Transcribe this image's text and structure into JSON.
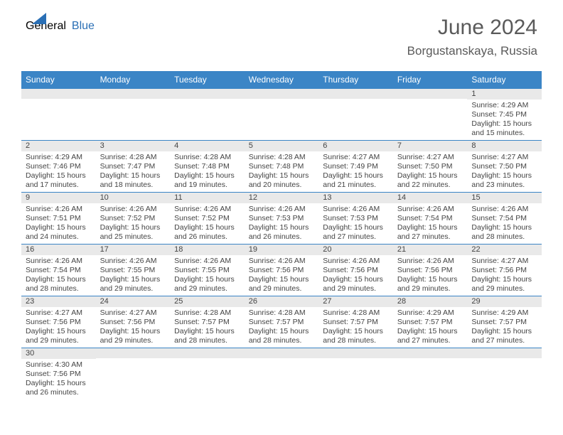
{
  "logo": {
    "general": "General",
    "blue": "Blue"
  },
  "header": {
    "title": "June 2024",
    "subtitle": "Borgustanskaya, Russia"
  },
  "colors": {
    "header_bar": "#3b85c6",
    "daynum_bg": "#e9e9e9",
    "text": "#444444",
    "logo_gray": "#5a5a5a",
    "logo_blue": "#2a6fb5"
  },
  "day_headers": [
    "Sunday",
    "Monday",
    "Tuesday",
    "Wednesday",
    "Thursday",
    "Friday",
    "Saturday"
  ],
  "weeks": [
    [
      {
        "empty": true
      },
      {
        "empty": true
      },
      {
        "empty": true
      },
      {
        "empty": true
      },
      {
        "empty": true
      },
      {
        "empty": true
      },
      {
        "day": "1",
        "sunrise": "Sunrise: 4:29 AM",
        "sunset": "Sunset: 7:45 PM",
        "daylight": "Daylight: 15 hours and 15 minutes."
      }
    ],
    [
      {
        "day": "2",
        "sunrise": "Sunrise: 4:29 AM",
        "sunset": "Sunset: 7:46 PM",
        "daylight": "Daylight: 15 hours and 17 minutes."
      },
      {
        "day": "3",
        "sunrise": "Sunrise: 4:28 AM",
        "sunset": "Sunset: 7:47 PM",
        "daylight": "Daylight: 15 hours and 18 minutes."
      },
      {
        "day": "4",
        "sunrise": "Sunrise: 4:28 AM",
        "sunset": "Sunset: 7:48 PM",
        "daylight": "Daylight: 15 hours and 19 minutes."
      },
      {
        "day": "5",
        "sunrise": "Sunrise: 4:28 AM",
        "sunset": "Sunset: 7:48 PM",
        "daylight": "Daylight: 15 hours and 20 minutes."
      },
      {
        "day": "6",
        "sunrise": "Sunrise: 4:27 AM",
        "sunset": "Sunset: 7:49 PM",
        "daylight": "Daylight: 15 hours and 21 minutes."
      },
      {
        "day": "7",
        "sunrise": "Sunrise: 4:27 AM",
        "sunset": "Sunset: 7:50 PM",
        "daylight": "Daylight: 15 hours and 22 minutes."
      },
      {
        "day": "8",
        "sunrise": "Sunrise: 4:27 AM",
        "sunset": "Sunset: 7:50 PM",
        "daylight": "Daylight: 15 hours and 23 minutes."
      }
    ],
    [
      {
        "day": "9",
        "sunrise": "Sunrise: 4:26 AM",
        "sunset": "Sunset: 7:51 PM",
        "daylight": "Daylight: 15 hours and 24 minutes."
      },
      {
        "day": "10",
        "sunrise": "Sunrise: 4:26 AM",
        "sunset": "Sunset: 7:52 PM",
        "daylight": "Daylight: 15 hours and 25 minutes."
      },
      {
        "day": "11",
        "sunrise": "Sunrise: 4:26 AM",
        "sunset": "Sunset: 7:52 PM",
        "daylight": "Daylight: 15 hours and 26 minutes."
      },
      {
        "day": "12",
        "sunrise": "Sunrise: 4:26 AM",
        "sunset": "Sunset: 7:53 PM",
        "daylight": "Daylight: 15 hours and 26 minutes."
      },
      {
        "day": "13",
        "sunrise": "Sunrise: 4:26 AM",
        "sunset": "Sunset: 7:53 PM",
        "daylight": "Daylight: 15 hours and 27 minutes."
      },
      {
        "day": "14",
        "sunrise": "Sunrise: 4:26 AM",
        "sunset": "Sunset: 7:54 PM",
        "daylight": "Daylight: 15 hours and 27 minutes."
      },
      {
        "day": "15",
        "sunrise": "Sunrise: 4:26 AM",
        "sunset": "Sunset: 7:54 PM",
        "daylight": "Daylight: 15 hours and 28 minutes."
      }
    ],
    [
      {
        "day": "16",
        "sunrise": "Sunrise: 4:26 AM",
        "sunset": "Sunset: 7:54 PM",
        "daylight": "Daylight: 15 hours and 28 minutes."
      },
      {
        "day": "17",
        "sunrise": "Sunrise: 4:26 AM",
        "sunset": "Sunset: 7:55 PM",
        "daylight": "Daylight: 15 hours and 29 minutes."
      },
      {
        "day": "18",
        "sunrise": "Sunrise: 4:26 AM",
        "sunset": "Sunset: 7:55 PM",
        "daylight": "Daylight: 15 hours and 29 minutes."
      },
      {
        "day": "19",
        "sunrise": "Sunrise: 4:26 AM",
        "sunset": "Sunset: 7:56 PM",
        "daylight": "Daylight: 15 hours and 29 minutes."
      },
      {
        "day": "20",
        "sunrise": "Sunrise: 4:26 AM",
        "sunset": "Sunset: 7:56 PM",
        "daylight": "Daylight: 15 hours and 29 minutes."
      },
      {
        "day": "21",
        "sunrise": "Sunrise: 4:26 AM",
        "sunset": "Sunset: 7:56 PM",
        "daylight": "Daylight: 15 hours and 29 minutes."
      },
      {
        "day": "22",
        "sunrise": "Sunrise: 4:27 AM",
        "sunset": "Sunset: 7:56 PM",
        "daylight": "Daylight: 15 hours and 29 minutes."
      }
    ],
    [
      {
        "day": "23",
        "sunrise": "Sunrise: 4:27 AM",
        "sunset": "Sunset: 7:56 PM",
        "daylight": "Daylight: 15 hours and 29 minutes."
      },
      {
        "day": "24",
        "sunrise": "Sunrise: 4:27 AM",
        "sunset": "Sunset: 7:56 PM",
        "daylight": "Daylight: 15 hours and 29 minutes."
      },
      {
        "day": "25",
        "sunrise": "Sunrise: 4:28 AM",
        "sunset": "Sunset: 7:57 PM",
        "daylight": "Daylight: 15 hours and 28 minutes."
      },
      {
        "day": "26",
        "sunrise": "Sunrise: 4:28 AM",
        "sunset": "Sunset: 7:57 PM",
        "daylight": "Daylight: 15 hours and 28 minutes."
      },
      {
        "day": "27",
        "sunrise": "Sunrise: 4:28 AM",
        "sunset": "Sunset: 7:57 PM",
        "daylight": "Daylight: 15 hours and 28 minutes."
      },
      {
        "day": "28",
        "sunrise": "Sunrise: 4:29 AM",
        "sunset": "Sunset: 7:57 PM",
        "daylight": "Daylight: 15 hours and 27 minutes."
      },
      {
        "day": "29",
        "sunrise": "Sunrise: 4:29 AM",
        "sunset": "Sunset: 7:57 PM",
        "daylight": "Daylight: 15 hours and 27 minutes."
      }
    ],
    [
      {
        "day": "30",
        "sunrise": "Sunrise: 4:30 AM",
        "sunset": "Sunset: 7:56 PM",
        "daylight": "Daylight: 15 hours and 26 minutes."
      },
      {
        "empty": true
      },
      {
        "empty": true
      },
      {
        "empty": true
      },
      {
        "empty": true
      },
      {
        "empty": true
      },
      {
        "empty": true
      }
    ]
  ]
}
